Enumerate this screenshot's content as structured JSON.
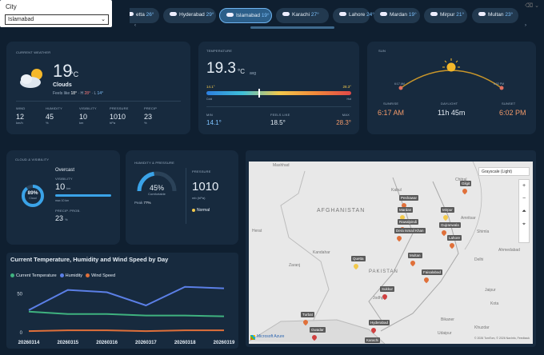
{
  "slicer": {
    "title": "City",
    "value": "Islamabad"
  },
  "chips": [
    {
      "name": "Quetta",
      "label": "etta",
      "temp": "26°"
    },
    {
      "name": "Hyderabad",
      "label": "Hyderabad",
      "temp": "29°"
    },
    {
      "name": "Islamabad",
      "label": "Islamabad",
      "temp": "19°",
      "active": true
    },
    {
      "name": "Karachi",
      "label": "Karachi",
      "temp": "27°"
    },
    {
      "name": "Lahore",
      "label": "Lahore",
      "temp": "24°"
    },
    {
      "name": "Mardan",
      "label": "Mardan",
      "temp": "19°"
    },
    {
      "name": "Mirpur",
      "label": "Mirpur",
      "temp": "21°"
    },
    {
      "name": "Multan",
      "label": "Multan",
      "temp": "23°"
    }
  ],
  "current": {
    "title": "CURRENT WEATHER",
    "temp": "19",
    "unit": "°C",
    "condition": "Clouds",
    "feels_label": "Feels like",
    "feels": "18°",
    "high_label": "· H",
    "high": "28°",
    "low_label": "· L",
    "low": "14°",
    "stats": [
      {
        "label": "WIND",
        "value": "12",
        "unit": "km/h"
      },
      {
        "label": "HUMIDITY",
        "value": "45",
        "unit": "%"
      },
      {
        "label": "VISIBILITY",
        "value": "10",
        "unit": "km"
      },
      {
        "label": "PRESSURE",
        "value": "1010",
        "unit": "hPa"
      },
      {
        "label": "PRECIP",
        "value": "23",
        "unit": "%"
      }
    ]
  },
  "temperature": {
    "title": "TEMPERATURE",
    "value": "19.3",
    "unit": "°C",
    "avg": "avg",
    "min_scale": "14.1°",
    "max_scale": "28.3°",
    "cold": "Cold",
    "hot": "Hot",
    "position": 0.36,
    "min_label": "MIN",
    "min": "14.1°",
    "feels_label": "FEELS LIKE",
    "feels": "18.5°",
    "max_label": "MAX",
    "max": "28.3°"
  },
  "sun": {
    "title": "SUN",
    "rise_time_small": "6:17 AM",
    "set_time_small": "6:02 PM",
    "sunrise_label": "SUNRISE",
    "sunrise": "6:17 AM",
    "daylight_label": "DAYLIGHT",
    "daylight": "11h 45m",
    "sunset_label": "SUNSET",
    "sunset": "6:02 PM"
  },
  "cloud": {
    "title": "CLOUD & VISIBILITY",
    "pct": "89%",
    "pct_label": "Cloud",
    "cloud_value": 0.89,
    "condition": "Overcast",
    "vis_label": "VISIBILITY",
    "vis": "10",
    "vis_unit": "km",
    "vis_sub": "max 10 km",
    "precip_label": "PRECIP. PROB.",
    "precip": "23",
    "precip_unit": "%"
  },
  "humidity": {
    "title": "HUMIDITY & PRESSURE",
    "pct": "45%",
    "pct_label": "Comfortable",
    "value": 0.45,
    "peak_label": "Peak",
    "peak": "77%",
    "pressure_label": "PRESSURE",
    "pressure": "1010",
    "pressure_unit": "mb (hPa)",
    "status": "Normal"
  },
  "chart_data": {
    "type": "line",
    "title": "Current Temperature, Humidity and Wind Speed by Day",
    "categories": [
      "20260314",
      "20260315",
      "20260316",
      "20260317",
      "20260318",
      "20260319"
    ],
    "series": [
      {
        "name": "Current Temperature",
        "color": "#3fb27f",
        "values": [
          27,
          24,
          24,
          22,
          22,
          21
        ]
      },
      {
        "name": "Humidity",
        "color": "#5b7fe6",
        "values": [
          29,
          55,
          52,
          35,
          59,
          57
        ]
      },
      {
        "name": "Wind Speed",
        "color": "#e0703a",
        "values": [
          2,
          3,
          3,
          2,
          3,
          3
        ]
      }
    ],
    "yticks": [
      "50",
      "0"
    ],
    "ylim": [
      0,
      70
    ]
  },
  "map": {
    "style_label": "Grayscale (Light)",
    "country_1": "AFGHANISTAN",
    "country_2": "PAKISTAN",
    "attribution": "© 2026 TomTom, © 2026 NavInfo, Feedback",
    "brand": "Microsoft Azure",
    "cities": [
      {
        "name": "Peshawar"
      },
      {
        "name": "Mardan"
      },
      {
        "name": "Gilgit"
      },
      {
        "name": "Mirpur"
      },
      {
        "name": "Rawalpindi"
      },
      {
        "name": "Gujranwala"
      },
      {
        "name": "Dera Ismail Khan"
      },
      {
        "name": "Lahore"
      },
      {
        "name": "Multan"
      },
      {
        "name": "Quetta"
      },
      {
        "name": "Faisalabad"
      },
      {
        "name": "Sukkur"
      },
      {
        "name": "Turbat"
      },
      {
        "name": "Hyderabad"
      },
      {
        "name": "Gwadar"
      },
      {
        "name": "Karachi"
      }
    ],
    "places": [
      {
        "name": "Mashhad"
      },
      {
        "name": "Kabul"
      },
      {
        "name": "Herat"
      },
      {
        "name": "Kandahar"
      },
      {
        "name": "Zaranj"
      },
      {
        "name": "Chitral"
      },
      {
        "name": "Amritsar"
      },
      {
        "name": "Shimla"
      },
      {
        "name": "Delhi"
      },
      {
        "name": "Jaipur"
      },
      {
        "name": "Kota"
      },
      {
        "name": "Jodhpur"
      },
      {
        "name": "Bikaner"
      },
      {
        "name": "Khuzdar"
      },
      {
        "name": "Udaipur"
      },
      {
        "name": "Ahmedabad"
      }
    ]
  }
}
